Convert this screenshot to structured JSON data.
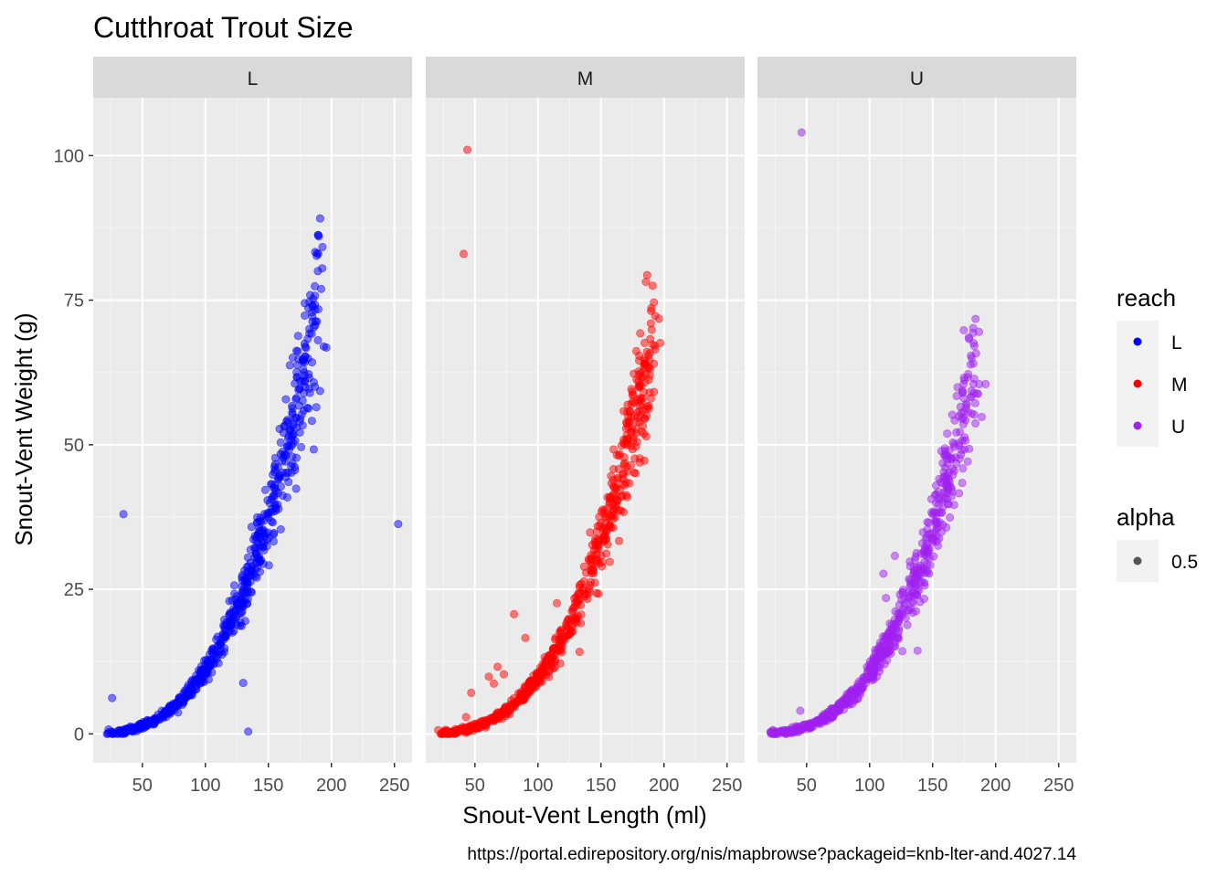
{
  "chart_data": {
    "type": "scatter",
    "title": "Cutthroat Trout Size",
    "xlabel": "Snout-Vent Length (ml)",
    "ylabel": "Snout-Vent Weight (g)",
    "caption": "https://portal.edirepository.org/nis/mapbrowse?packageid=knb-lter-and.4027.14",
    "xlim": [
      11,
      264
    ],
    "ylim": [
      -5,
      110
    ],
    "x_ticks": [
      50,
      100,
      150,
      200,
      250
    ],
    "x_tick_labels": [
      "50",
      "100",
      "150",
      "200",
      "250"
    ],
    "y_ticks": [
      0,
      25,
      50,
      75,
      100
    ],
    "y_tick_labels": [
      "0",
      "25",
      "50",
      "75",
      "100"
    ],
    "grid": true,
    "point_alpha": 0.5,
    "facets": [
      {
        "label": "L",
        "color": "#0000FF",
        "trend": {
          "x_min": 23,
          "x_max": 196,
          "y_at_100": 11.2,
          "exponent": 3.0,
          "n_points": 650
        },
        "points": [
          [
            26,
            6.2
          ],
          [
            35,
            38
          ],
          [
            130,
            8.8
          ],
          [
            134,
            0.4
          ],
          [
            253,
            36.3
          ],
          [
            194,
            67
          ],
          [
            196,
            66.8
          ],
          [
            178,
            64.6
          ],
          [
            182,
            62.2
          ],
          [
            178,
            58.9
          ],
          [
            186,
            60.8
          ],
          [
            191,
            59.3
          ],
          [
            188,
            56.5
          ],
          [
            172,
            54.7
          ],
          [
            169,
            55.2
          ],
          [
            175,
            52.1
          ],
          [
            166,
            53.9
          ],
          [
            176,
            49.6
          ],
          [
            186,
            49.2
          ],
          [
            164,
            48.1
          ],
          [
            161,
            47.2
          ],
          [
            168,
            46.3
          ],
          [
            171,
            45.6
          ],
          [
            155,
            45.3
          ],
          [
            152,
            43.2
          ],
          [
            160,
            42.8
          ],
          [
            172,
            42.4
          ],
          [
            165,
            40.9
          ],
          [
            158,
            38.9
          ],
          [
            150,
            37.4
          ],
          [
            144,
            35.2
          ],
          [
            140,
            31.2
          ],
          [
            138,
            27.6
          ],
          [
            146,
            29.4
          ],
          [
            125,
            18.9
          ],
          [
            115,
            14.2
          ],
          [
            104,
            11.8
          ],
          [
            94,
            9.2
          ],
          [
            84,
            6.3
          ],
          [
            72,
            3.7
          ],
          [
            60,
            2.1
          ],
          [
            48,
            1.0
          ]
        ]
      },
      {
        "label": "M",
        "color": "#FF0000",
        "trend": {
          "x_min": 21,
          "x_max": 196,
          "y_at_100": 9.8,
          "exponent": 3.0,
          "n_points": 650
        },
        "points": [
          [
            44,
            101
          ],
          [
            41,
            83
          ],
          [
            191,
            77.5
          ],
          [
            192,
            74.6
          ],
          [
            193,
            72.3
          ],
          [
            196,
            71.8
          ],
          [
            197,
            67.6
          ],
          [
            193,
            66.5
          ],
          [
            189,
            65.9
          ],
          [
            178,
            66.2
          ],
          [
            185,
            64.5
          ],
          [
            176,
            62.3
          ],
          [
            182,
            60.2
          ],
          [
            187,
            63.3
          ],
          [
            175,
            58.6
          ],
          [
            171,
            55.7
          ],
          [
            168,
            55.8
          ],
          [
            170,
            52.8
          ],
          [
            160,
            49.2
          ],
          [
            172,
            54.1
          ],
          [
            168,
            50.3
          ],
          [
            165,
            48.4
          ],
          [
            170,
            43.5
          ],
          [
            158,
            44.6
          ],
          [
            162,
            41.2
          ],
          [
            166,
            38.6
          ],
          [
            155,
            37.4
          ],
          [
            152,
            33.7
          ],
          [
            148,
            32.5
          ],
          [
            81,
            20.7
          ],
          [
            90,
            16.6
          ],
          [
            68,
            11.6
          ],
          [
            73,
            10.3
          ],
          [
            61,
            9.9
          ],
          [
            65,
            8.7
          ],
          [
            47,
            7.1
          ],
          [
            43,
            2.9
          ],
          [
            115,
            22.6
          ],
          [
            125,
            17.3
          ],
          [
            118,
            14.6
          ],
          [
            133,
            14.2
          ],
          [
            106,
            12.5
          ],
          [
            98,
            9.3
          ],
          [
            88,
            7.1
          ],
          [
            78,
            4.8
          ],
          [
            62,
            2.7
          ],
          [
            50,
            1.4
          ]
        ]
      },
      {
        "label": "U",
        "color": "#A020F0",
        "trend": {
          "x_min": 20,
          "x_max": 190,
          "y_at_100": 10.5,
          "exponent": 3.0,
          "n_points": 620
        },
        "points": [
          [
            46,
            104
          ],
          [
            181,
            65
          ],
          [
            192,
            60.5
          ],
          [
            186,
            58.8
          ],
          [
            183,
            55.2
          ],
          [
            189,
            54.8
          ],
          [
            184,
            53.7
          ],
          [
            171,
            50.3
          ],
          [
            176,
            50.7
          ],
          [
            173,
            49.1
          ],
          [
            179,
            49.3
          ],
          [
            168,
            47.8
          ],
          [
            160,
            48.9
          ],
          [
            157,
            48.9
          ],
          [
            166,
            44.8
          ],
          [
            174,
            45.9
          ],
          [
            162,
            43.2
          ],
          [
            171,
            41.6
          ],
          [
            165,
            41.1
          ],
          [
            167,
            39.6
          ],
          [
            152,
            41.3
          ],
          [
            149,
            40.6
          ],
          [
            157,
            38.3
          ],
          [
            153,
            35.6
          ],
          [
            147,
            36.5
          ],
          [
            150,
            33.1
          ],
          [
            146,
            31.6
          ],
          [
            136,
            30.1
          ],
          [
            140,
            28.7
          ],
          [
            132,
            29.8
          ],
          [
            120,
            30.8
          ],
          [
            111,
            27.7
          ],
          [
            113,
            23.5
          ],
          [
            120,
            15.8
          ],
          [
            126,
            14.3
          ],
          [
            138,
            14.4
          ],
          [
            113,
            13.8
          ],
          [
            45,
            4.0
          ],
          [
            100,
            12.0
          ],
          [
            92,
            9.1
          ],
          [
            82,
            6.9
          ],
          [
            70,
            4.4
          ],
          [
            57,
            2.0
          ],
          [
            42,
            0.7
          ]
        ]
      }
    ],
    "legends": [
      {
        "title": "reach",
        "items": [
          {
            "label": "L",
            "color": "#0000FF"
          },
          {
            "label": "M",
            "color": "#FF0000"
          },
          {
            "label": "U",
            "color": "#A020F0"
          }
        ]
      },
      {
        "title": "alpha",
        "items": [
          {
            "label": "0.5",
            "color": "#000000",
            "alpha": 0.5
          }
        ]
      }
    ]
  }
}
